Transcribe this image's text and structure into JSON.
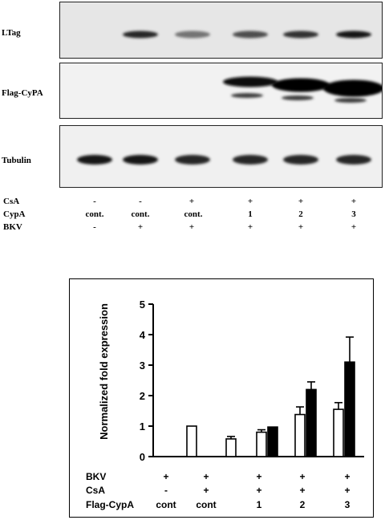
{
  "blot": {
    "rows": [
      {
        "label": "LTag",
        "intensity": [
          0.0,
          0.85,
          0.55,
          0.7,
          0.8,
          0.9
        ]
      },
      {
        "label": "Flag-CyPA",
        "intensity": [
          0.05,
          0.05,
          0.05,
          0.95,
          1.0,
          1.0
        ]
      },
      {
        "label": "Tubulin",
        "intensity": [
          0.9,
          0.9,
          0.85,
          0.85,
          0.85,
          0.85
        ]
      }
    ],
    "conditions": [
      {
        "label": "CsA",
        "values": [
          "-",
          "-",
          "+",
          "+",
          "+",
          "+"
        ]
      },
      {
        "label": "CypA",
        "values": [
          "cont.",
          "cont.",
          "cont.",
          "1",
          "2",
          "3"
        ]
      },
      {
        "label": "BKV",
        "values": [
          "-",
          "+",
          "+",
          "+",
          "+",
          "+"
        ]
      }
    ]
  },
  "chart_data": {
    "type": "bar",
    "ylabel": "Normalized fold expression",
    "ylim": [
      0,
      5
    ],
    "yticks": [
      "0",
      "1",
      "2",
      "3",
      "4",
      "5"
    ],
    "groups": [
      "cont",
      "cont",
      "",
      "1",
      "2",
      "3"
    ],
    "series": [
      {
        "fill": "#ffffff",
        "values": [
          null,
          1.0,
          0.58,
          0.8,
          1.38,
          1.55
        ],
        "errors": [
          null,
          null,
          0.08,
          0.08,
          0.25,
          0.22
        ]
      },
      {
        "fill": "#000000",
        "values": [
          null,
          null,
          null,
          0.97,
          2.2,
          3.1
        ],
        "errors": [
          null,
          null,
          null,
          null,
          0.25,
          0.82
        ]
      }
    ],
    "conditions": [
      {
        "label": "BKV",
        "values": [
          "+",
          "+",
          "+",
          "+",
          "+",
          "+"
        ]
      },
      {
        "label": "CsA",
        "values": [
          "-",
          "+",
          "+",
          "+",
          "+",
          "+"
        ]
      },
      {
        "label": "Flag-CypA",
        "values": [
          "cont",
          "cont",
          "",
          "1",
          "2",
          "3"
        ]
      }
    ]
  }
}
